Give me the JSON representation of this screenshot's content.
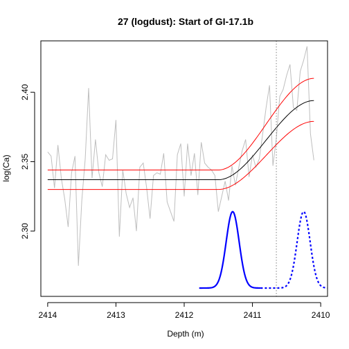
{
  "chart_data": {
    "type": "line",
    "title": "27 (logdust): Start of GI-17.1b",
    "xlabel": "Depth (m)",
    "ylabel": "log(Ca)",
    "xlim": [
      2414.1,
      2409.9
    ],
    "ylim": [
      2.253,
      2.437
    ],
    "x_reversed": true,
    "xticks": [
      "2414",
      "2413",
      "2412",
      "2411",
      "2410"
    ],
    "yticks": [
      "2.30",
      "2.35",
      "2.40"
    ],
    "grid": false,
    "legend": "none",
    "colors": {
      "data": "#bebebe",
      "fit": "#000000",
      "bounds": "#ff0000",
      "density": "#0000ff",
      "marker": "#808080"
    },
    "marker_depth": 2410.65,
    "series": [
      {
        "role": "data",
        "x": [
          2414.0,
          2413.95,
          2413.9,
          2413.85,
          2413.8,
          2413.75,
          2413.7,
          2413.65,
          2413.6,
          2413.55,
          2413.5,
          2413.45,
          2413.4,
          2413.35,
          2413.3,
          2413.25,
          2413.2,
          2413.15,
          2413.1,
          2413.05,
          2413.0,
          2412.95,
          2412.9,
          2412.85,
          2412.8,
          2412.75,
          2412.7,
          2412.65,
          2412.6,
          2412.55,
          2412.5,
          2412.45,
          2412.4,
          2412.35,
          2412.3,
          2412.25,
          2412.2,
          2412.15,
          2412.1,
          2412.05,
          2412.0,
          2411.95,
          2411.9,
          2411.85,
          2411.8,
          2411.75,
          2411.7,
          2411.65,
          2411.6,
          2411.55,
          2411.5,
          2411.45,
          2411.4,
          2411.35,
          2411.3,
          2411.25,
          2411.2,
          2411.15,
          2411.1,
          2411.05,
          2411.0,
          2410.95,
          2410.9,
          2410.85,
          2410.8,
          2410.75,
          2410.7,
          2410.65,
          2410.6,
          2410.55,
          2410.5,
          2410.45,
          2410.4,
          2410.35,
          2410.3,
          2410.25,
          2410.2,
          2410.15,
          2410.1
        ],
        "y": [
          2.357,
          2.354,
          2.331,
          2.362,
          2.338,
          2.323,
          2.303,
          2.342,
          2.354,
          2.275,
          2.322,
          2.352,
          2.403,
          2.338,
          2.366,
          2.342,
          2.332,
          2.355,
          2.351,
          2.352,
          2.38,
          2.296,
          2.344,
          2.327,
          2.317,
          2.324,
          2.3,
          2.346,
          2.349,
          2.331,
          2.309,
          2.34,
          2.342,
          2.341,
          2.356,
          2.321,
          2.314,
          2.307,
          2.355,
          2.363,
          2.325,
          2.363,
          2.34,
          2.356,
          2.326,
          2.364,
          2.349,
          2.346,
          2.344,
          2.34,
          2.314,
          2.325,
          2.336,
          2.322,
          2.347,
          2.333,
          2.346,
          2.358,
          2.366,
          2.339,
          2.355,
          2.346,
          2.352,
          2.37,
          2.389,
          2.405,
          2.347,
          2.367,
          2.397,
          2.402,
          2.412,
          2.42,
          2.389,
          2.387,
          2.415,
          2.423,
          2.433,
          2.37,
          2.351
        ]
      },
      {
        "role": "fit",
        "x0": 2414.0,
        "x1": 2410.1,
        "base": 2.337,
        "top": 2.394,
        "rise_start": 2411.5,
        "rise_end": 2410.1
      },
      {
        "role": "upper",
        "x0": 2414.0,
        "x1": 2410.1,
        "base": 2.344,
        "top": 2.41,
        "rise_start": 2411.5,
        "rise_end": 2410.1
      },
      {
        "role": "lower",
        "x0": 2414.0,
        "x1": 2410.1,
        "base": 2.33,
        "top": 2.379,
        "rise_start": 2411.5,
        "rise_end": 2410.1
      },
      {
        "role": "density-solid",
        "x0": 2411.78,
        "x1": 2410.88,
        "center": 2411.29,
        "sd": 0.095,
        "base": 2.259,
        "peak": 2.314,
        "style": "solid"
      },
      {
        "role": "density-dashed",
        "x0": 2410.88,
        "x1": 2409.9,
        "center": 2410.25,
        "sd": 0.095,
        "base": 2.259,
        "peak": 2.314,
        "style": "dashed"
      }
    ]
  }
}
